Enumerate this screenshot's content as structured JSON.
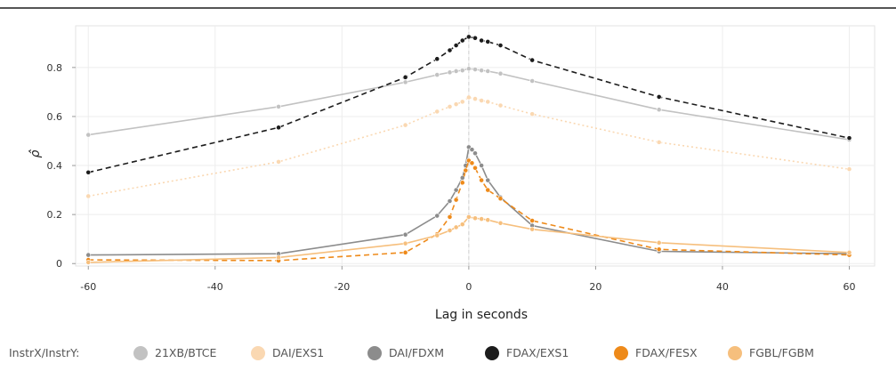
{
  "chart_data": {
    "type": "line",
    "title": "",
    "xlabel": "Lag in seconds",
    "ylabel": "ρ̂",
    "xlim": [
      -62,
      64
    ],
    "ylim": [
      -0.01,
      0.97
    ],
    "xticks": [
      -60,
      -40,
      -20,
      0,
      20,
      40,
      60
    ],
    "yticks": [
      0,
      0.2,
      0.4,
      0.6,
      0.8
    ],
    "ytick_labels": [
      "0",
      "0.2",
      "0.4",
      "0.6",
      "0.8"
    ],
    "grid": true,
    "zero_line": true,
    "legend": {
      "title": "InstrX/InstrY:",
      "position": "bottom"
    },
    "series": [
      {
        "name": "21XB/BTCE",
        "color": "#c2c2c2",
        "dash": "solid",
        "points": [
          [
            -60,
            0.525
          ],
          [
            -30,
            0.64
          ],
          [
            -10,
            0.74
          ],
          [
            -5,
            0.77
          ],
          [
            -3,
            0.78
          ],
          [
            -2,
            0.785
          ],
          [
            -1,
            0.788
          ],
          [
            0,
            0.795
          ],
          [
            1,
            0.792
          ],
          [
            2,
            0.788
          ],
          [
            3,
            0.785
          ],
          [
            5,
            0.775
          ],
          [
            10,
            0.745
          ],
          [
            30,
            0.628
          ],
          [
            60,
            0.505
          ]
        ]
      },
      {
        "name": "DAI/EXS1",
        "color": "#fad8b2",
        "dash": "dotted",
        "points": [
          [
            -60,
            0.275
          ],
          [
            -30,
            0.415
          ],
          [
            -10,
            0.565
          ],
          [
            -5,
            0.62
          ],
          [
            -3,
            0.64
          ],
          [
            -2,
            0.65
          ],
          [
            -1,
            0.66
          ],
          [
            0,
            0.678
          ],
          [
            1,
            0.672
          ],
          [
            2,
            0.665
          ],
          [
            3,
            0.66
          ],
          [
            5,
            0.645
          ],
          [
            10,
            0.61
          ],
          [
            30,
            0.495
          ],
          [
            60,
            0.385
          ]
        ]
      },
      {
        "name": "DAI/FDXM",
        "color": "#8c8c8c",
        "dash": "solid",
        "points": [
          [
            -60,
            0.035
          ],
          [
            -30,
            0.04
          ],
          [
            -10,
            0.118
          ],
          [
            -5,
            0.195
          ],
          [
            -3,
            0.255
          ],
          [
            -2,
            0.3
          ],
          [
            -1,
            0.35
          ],
          [
            -0.5,
            0.4
          ],
          [
            0,
            0.475
          ],
          [
            0.5,
            0.465
          ],
          [
            1,
            0.45
          ],
          [
            2,
            0.4
          ],
          [
            3,
            0.34
          ],
          [
            5,
            0.27
          ],
          [
            10,
            0.155
          ],
          [
            30,
            0.05
          ],
          [
            60,
            0.04
          ]
        ]
      },
      {
        "name": "FDAX/EXS1",
        "color": "#1c1c1c",
        "dash": "dashed",
        "points": [
          [
            -60,
            0.372
          ],
          [
            -30,
            0.555
          ],
          [
            -10,
            0.76
          ],
          [
            -5,
            0.835
          ],
          [
            -3,
            0.87
          ],
          [
            -2,
            0.89
          ],
          [
            -1,
            0.91
          ],
          [
            0,
            0.925
          ],
          [
            1,
            0.92
          ],
          [
            2,
            0.91
          ],
          [
            3,
            0.905
          ],
          [
            5,
            0.89
          ],
          [
            10,
            0.83
          ],
          [
            30,
            0.68
          ],
          [
            60,
            0.512
          ]
        ]
      },
      {
        "name": "FDAX/FESX",
        "color": "#ee8a1a",
        "dash": "dashed",
        "points": [
          [
            -60,
            0.015
          ],
          [
            -30,
            0.012
          ],
          [
            -10,
            0.045
          ],
          [
            -5,
            0.12
          ],
          [
            -3,
            0.19
          ],
          [
            -2,
            0.26
          ],
          [
            -1,
            0.33
          ],
          [
            -0.5,
            0.38
          ],
          [
            0,
            0.42
          ],
          [
            0.5,
            0.41
          ],
          [
            1,
            0.39
          ],
          [
            2,
            0.34
          ],
          [
            3,
            0.3
          ],
          [
            5,
            0.265
          ],
          [
            10,
            0.175
          ],
          [
            30,
            0.058
          ],
          [
            60,
            0.035
          ]
        ]
      },
      {
        "name": "FGBL/FGBM",
        "color": "#f6bf7d",
        "dash": "solid",
        "points": [
          [
            -60,
            0.005
          ],
          [
            -30,
            0.025
          ],
          [
            -10,
            0.082
          ],
          [
            -5,
            0.115
          ],
          [
            -3,
            0.135
          ],
          [
            -2,
            0.148
          ],
          [
            -1,
            0.16
          ],
          [
            0,
            0.19
          ],
          [
            1,
            0.185
          ],
          [
            2,
            0.182
          ],
          [
            3,
            0.178
          ],
          [
            5,
            0.165
          ],
          [
            10,
            0.14
          ],
          [
            30,
            0.085
          ],
          [
            60,
            0.045
          ]
        ]
      }
    ]
  }
}
